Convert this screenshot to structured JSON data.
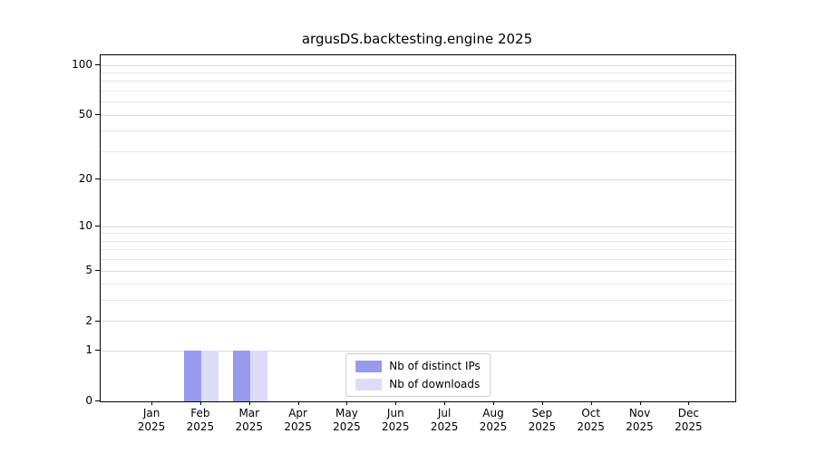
{
  "title": "argusDS.backtesting.engine 2025",
  "chart_data": {
    "type": "bar",
    "title": "argusDS.backtesting.engine 2025",
    "categories": [
      "Jan",
      "Feb",
      "Mar",
      "Apr",
      "May",
      "Jun",
      "Jul",
      "Aug",
      "Sep",
      "Oct",
      "Nov",
      "Dec"
    ],
    "x_tick_second_line": "2025",
    "series": [
      {
        "name": "Nb of distinct IPs",
        "color": "#9999ee",
        "values": [
          0,
          1,
          1,
          0,
          0,
          0,
          0,
          0,
          0,
          0,
          0,
          0
        ]
      },
      {
        "name": "Nb of downloads",
        "color": "#dcdcf8",
        "values": [
          0,
          1,
          1,
          0,
          0,
          0,
          0,
          0,
          0,
          0,
          0,
          0
        ]
      }
    ],
    "yscale": "log1p",
    "ylim": [
      0,
      115
    ],
    "y_major_ticks": [
      0,
      1,
      2,
      5,
      10,
      20,
      50,
      100
    ],
    "y_minor_ticks": [
      3,
      4,
      6,
      7,
      8,
      9,
      30,
      40,
      60,
      70,
      80,
      90
    ],
    "grid": "horizontal",
    "legend_position": "lower center",
    "colors": {
      "grid_major": "#d9d9d9",
      "grid_minor": "#e8e8e8",
      "axis": "#000000",
      "legend_border": "#cccccc"
    }
  }
}
